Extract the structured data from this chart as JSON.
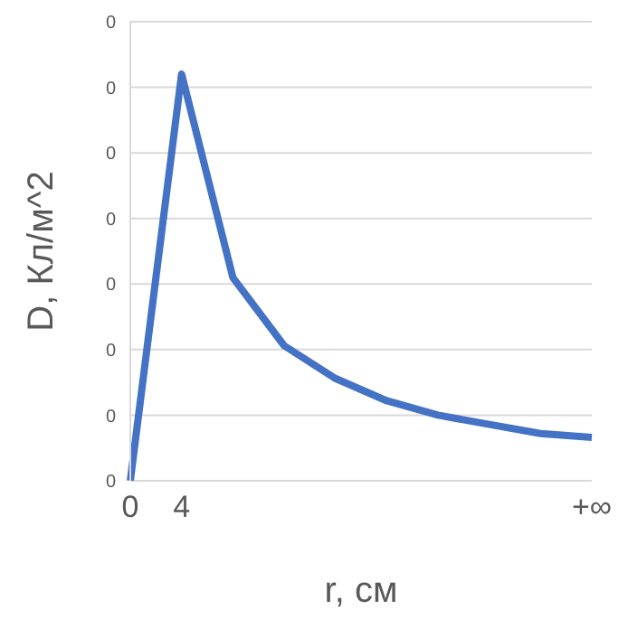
{
  "chart_data": {
    "type": "line",
    "xlabel": "r, см",
    "ylabel": "D, Кл/м^2",
    "categories": [
      "0",
      "4",
      null,
      null,
      null,
      null,
      null,
      null,
      null,
      "+∞"
    ],
    "series": [
      {
        "color": "#4472c4",
        "values": [
          0,
          0.31,
          0.155,
          0.103,
          0.078,
          0.061,
          0.05,
          0.043,
          0.036,
          0.033
        ]
      }
    ],
    "ylim": [
      0,
      0.35
    ],
    "yticks": [
      {
        "value": 0,
        "label": "0"
      },
      {
        "value": 0.05,
        "label": "0"
      },
      {
        "value": 0.1,
        "label": "0"
      },
      {
        "value": 0.15,
        "label": "0"
      },
      {
        "value": 0.2,
        "label": "0"
      },
      {
        "value": 0.25,
        "label": "0"
      },
      {
        "value": 0.3,
        "label": "0"
      },
      {
        "value": 0.35,
        "label": "0"
      }
    ],
    "grid": "y",
    "legend": false,
    "marker": "none",
    "line_style": "solid"
  }
}
